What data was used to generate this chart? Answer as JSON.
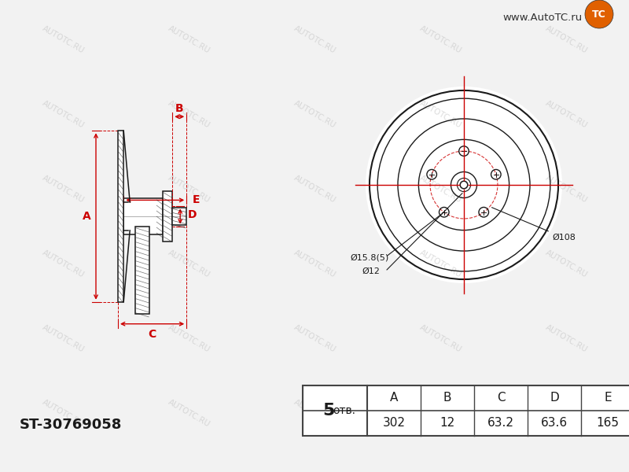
{
  "bg_color": "#f2f2f2",
  "line_color": "#1a1a1a",
  "red_color": "#cc0000",
  "part_number": "ST-30769058",
  "table_label_num": "5",
  "table_label_text": "отв.",
  "table_headers": [
    "A",
    "B",
    "C",
    "D",
    "E"
  ],
  "table_values": [
    "302",
    "12",
    "63.2",
    "63.6",
    "165"
  ],
  "bolt_hole_label": "Ø15.8(5)",
  "center_bore_label": "Ø12",
  "bolt_circle_label": "Ø108",
  "watermark_text": "AUTOTC.RU",
  "logo_text": "www.AutoTC.ru"
}
